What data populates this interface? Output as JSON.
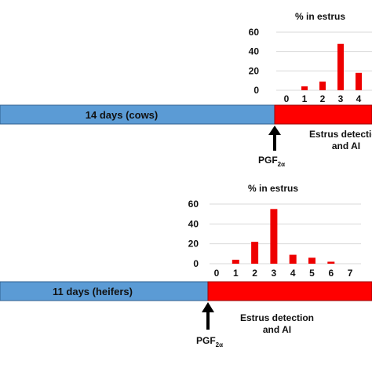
{
  "panels": [
    {
      "id": "cows",
      "bar_label": "14 days (cows)",
      "phase_label_line1": "Estrus detection",
      "phase_label_line2": "and AI",
      "pgf_label_base": "PGF",
      "pgf_label_sub": "2α",
      "colors": {
        "blue_bar": "#5b9bd5",
        "red_bar": "#ff0000",
        "chart_bar": "#ee0000"
      }
    },
    {
      "id": "heifers",
      "bar_label": "11 days (heifers)",
      "phase_label_line1": "Estrus detection",
      "phase_label_line2": "and AI",
      "pgf_label_base": "PGF",
      "pgf_label_sub": "2α",
      "colors": {
        "blue_bar": "#5b9bd5",
        "red_bar": "#ff0000",
        "chart_bar": "#ee0000"
      }
    }
  ],
  "chart_data": [
    {
      "type": "bar",
      "title": "% in estrus",
      "categories": [
        "0",
        "1",
        "2",
        "3",
        "4"
      ],
      "values": [
        0,
        4,
        9,
        48,
        18
      ],
      "y_ticks": [
        "0",
        "20",
        "40",
        "60"
      ],
      "ylim": [
        0,
        60
      ],
      "grid": true
    },
    {
      "type": "bar",
      "title": "% in estrus",
      "categories": [
        "0",
        "1",
        "2",
        "3",
        "4",
        "5",
        "6",
        "7"
      ],
      "values": [
        0,
        4,
        22,
        55,
        9,
        6,
        2,
        0
      ],
      "y_ticks": [
        "0",
        "20",
        "40",
        "60"
      ],
      "ylim": [
        0,
        60
      ],
      "grid": true
    }
  ]
}
